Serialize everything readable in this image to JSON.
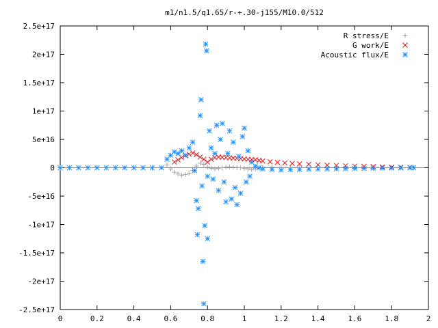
{
  "chart_data": {
    "type": "scatter",
    "title": "m1/n1.5/q1.65/r-+.30-j155/M10.0/512",
    "xlabel": "",
    "ylabel": "",
    "xlim": [
      0,
      2
    ],
    "ylim": [
      -2.5e+17,
      2.5e+17
    ],
    "x_ticks": [
      0,
      0.2,
      0.4,
      0.6,
      0.8,
      1,
      1.2,
      1.4,
      1.6,
      1.8,
      2
    ],
    "x_tick_labels": [
      "0",
      "0.2",
      "0.4",
      "0.6",
      "0.8",
      "1",
      "1.2",
      "1.4",
      "1.6",
      "1.8",
      "2"
    ],
    "y_ticks": [
      -2.5e+17,
      -2e+17,
      -1.5e+17,
      -1e+17,
      -5e+16,
      0,
      5e+16,
      1e+17,
      1.5e+17,
      2e+17,
      2.5e+17
    ],
    "y_tick_labels": [
      "-2.5e+17",
      "-2e+17",
      "-1.5e+17",
      "-1e+17",
      "-5e+16",
      "0",
      "5e+16",
      "1e+17",
      "1.5e+17",
      "2e+17",
      "2.5e+17"
    ],
    "grid": false,
    "legend_position": "top-right",
    "series": [
      {
        "name": "R stress/E",
        "marker": "plus",
        "color": "#a0a0a0",
        "points": [
          [
            0.58,
            5000000000000000.0
          ],
          [
            0.6,
            -2000000000000000.0
          ],
          [
            0.62,
            -8000000000000000.0
          ],
          [
            0.64,
            -1.1e+16
          ],
          [
            0.66,
            -1.3e+16
          ],
          [
            0.68,
            -1.2e+16
          ],
          [
            0.7,
            -1e+16
          ],
          [
            0.72,
            -5000000000000000.0
          ],
          [
            0.74,
            3000000000000000.0
          ],
          [
            0.76,
            8000000000000000.0
          ],
          [
            0.78,
            6000000000000000.0
          ],
          [
            0.8,
            1000000000000000.0
          ],
          [
            0.82,
            -1000000000000000.0
          ],
          [
            0.84,
            -2000000000000000.0
          ],
          [
            0.86,
            -1000000000000000.0
          ],
          [
            0.88,
            0.0
          ],
          [
            0.9,
            1000000000000000.0
          ],
          [
            0.92,
            1500000000000000.0
          ],
          [
            0.94,
            1000000000000000.0
          ],
          [
            0.96,
            500000000000000.0
          ],
          [
            0.98,
            0.0
          ],
          [
            1.0,
            -1000000000000000.0
          ],
          [
            1.02,
            -2000000000000000.0
          ],
          [
            1.04,
            -3000000000000000.0
          ],
          [
            1.06,
            -2000000000000000.0
          ],
          [
            1.08,
            -500000000000000.0
          ],
          [
            1.1,
            500000000000000.0
          ],
          [
            1.15,
            1000000000000000.0
          ],
          [
            1.2,
            500000000000000.0
          ],
          [
            1.25,
            0.0
          ],
          [
            1.3,
            0.0
          ],
          [
            1.4,
            0.0
          ],
          [
            1.5,
            0.0
          ],
          [
            1.6,
            0.0
          ],
          [
            1.7,
            0.0
          ],
          [
            1.8,
            0.0
          ],
          [
            1.9,
            0.0
          ]
        ]
      },
      {
        "name": "G work/E",
        "marker": "cross",
        "color": "#e01010",
        "points": [
          [
            0.62,
            1e+16
          ],
          [
            0.64,
            1.4e+16
          ],
          [
            0.66,
            1.8e+16
          ],
          [
            0.68,
            2.1e+16
          ],
          [
            0.7,
            2.4e+16
          ],
          [
            0.72,
            2.6e+16
          ],
          [
            0.74,
            2.3e+16
          ],
          [
            0.76,
            1.9e+16
          ],
          [
            0.78,
            1.5e+16
          ],
          [
            0.8,
            1e+16
          ],
          [
            0.82,
            1.5e+16
          ],
          [
            0.84,
            1.8e+16
          ],
          [
            0.86,
            1.9e+16
          ],
          [
            0.88,
            1.85e+16
          ],
          [
            0.9,
            1.8e+16
          ],
          [
            0.92,
            1.75e+16
          ],
          [
            0.94,
            1.7e+16
          ],
          [
            0.96,
            1.65e+16
          ],
          [
            0.98,
            1.6e+16
          ],
          [
            1.0,
            1.55e+16
          ],
          [
            1.02,
            1.5e+16
          ],
          [
            1.04,
            1.45e+16
          ],
          [
            1.06,
            1.4e+16
          ],
          [
            1.08,
            1.3e+16
          ],
          [
            1.1,
            1.2e+16
          ],
          [
            1.14,
            1.05e+16
          ],
          [
            1.18,
            9500000000000000.0
          ],
          [
            1.22,
            8500000000000000.0
          ],
          [
            1.26,
            7500000000000000.0
          ],
          [
            1.3,
            6800000000000000.0
          ],
          [
            1.35,
            6000000000000000.0
          ],
          [
            1.4,
            5200000000000000.0
          ],
          [
            1.45,
            4500000000000000.0
          ],
          [
            1.5,
            4000000000000000.0
          ],
          [
            1.55,
            3400000000000000.0
          ],
          [
            1.6,
            2800000000000000.0
          ],
          [
            1.65,
            2400000000000000.0
          ],
          [
            1.7,
            2000000000000000.0
          ],
          [
            1.75,
            1500000000000000.0
          ],
          [
            1.8,
            1100000000000000.0
          ],
          [
            1.85,
            800000000000000.0
          ],
          [
            1.9,
            500000000000000.0
          ]
        ]
      },
      {
        "name": "Acoustic flux/E",
        "marker": "star",
        "color": "#1e90ff",
        "points": [
          [
            0,
            0
          ],
          [
            0.05,
            0
          ],
          [
            0.1,
            0
          ],
          [
            0.15,
            0
          ],
          [
            0.2,
            0
          ],
          [
            0.25,
            0
          ],
          [
            0.3,
            0
          ],
          [
            0.35,
            0
          ],
          [
            0.4,
            0
          ],
          [
            0.45,
            0
          ],
          [
            0.5,
            0
          ],
          [
            0.55,
            0
          ],
          [
            0.58,
            1.5e+16
          ],
          [
            0.6,
            2.2e+16
          ],
          [
            0.62,
            2.8e+16
          ],
          [
            0.64,
            2.5e+16
          ],
          [
            0.66,
            3e+16
          ],
          [
            0.68,
            2.2e+16
          ],
          [
            0.7,
            3.5e+16
          ],
          [
            0.72,
            4.5e+16
          ],
          [
            0.73,
            -5000000000000000.0
          ],
          [
            0.74,
            -5.8e+16
          ],
          [
            0.745,
            -1.18e+17
          ],
          [
            0.75,
            -7.2e+16
          ],
          [
            0.76,
            9.2e+16
          ],
          [
            0.765,
            1.2e+17
          ],
          [
            0.77,
            -3.2e+16
          ],
          [
            0.775,
            -1.65e+17
          ],
          [
            0.78,
            -2.4e+17
          ],
          [
            0.785,
            -1.02e+17
          ],
          [
            0.79,
            2.18e+17
          ],
          [
            0.795,
            2.06e+17
          ],
          [
            0.8,
            -1.25e+17
          ],
          [
            0.8,
            -1.5e+16
          ],
          [
            0.81,
            6.5e+16
          ],
          [
            0.82,
            3.5e+16
          ],
          [
            0.83,
            -2e+16
          ],
          [
            0.84,
            2.5e+16
          ],
          [
            0.85,
            7.5e+16
          ],
          [
            0.86,
            -4e+16
          ],
          [
            0.87,
            5e+16
          ],
          [
            0.88,
            7.8e+16
          ],
          [
            0.89,
            -2.5e+16
          ],
          [
            0.9,
            -6e+16
          ],
          [
            0.91,
            2.5e+16
          ],
          [
            0.92,
            6.5e+16
          ],
          [
            0.93,
            -5.5e+16
          ],
          [
            0.94,
            4.5e+16
          ],
          [
            0.95,
            -3.5e+16
          ],
          [
            0.96,
            -6.5e+16
          ],
          [
            0.97,
            2e+16
          ],
          [
            0.98,
            -4.5e+16
          ],
          [
            0.99,
            5.5e+16
          ],
          [
            1.0,
            7e+16
          ],
          [
            1.01,
            -2.5e+16
          ],
          [
            1.02,
            3e+16
          ],
          [
            1.03,
            -1.5e+16
          ],
          [
            1.04,
            1e+16
          ],
          [
            1.06,
            3000000000000000.0
          ],
          [
            1.08,
            0.0
          ],
          [
            1.1,
            -2000000000000000.0
          ],
          [
            1.15,
            -3000000000000000.0
          ],
          [
            1.2,
            -4000000000000000.0
          ],
          [
            1.25,
            -3500000000000000.0
          ],
          [
            1.3,
            -3000000000000000.0
          ],
          [
            1.35,
            -2500000000000000.0
          ],
          [
            1.4,
            -2200000000000000.0
          ],
          [
            1.45,
            -2000000000000000.0
          ],
          [
            1.5,
            -1800000000000000.0
          ],
          [
            1.55,
            -1500000000000000.0
          ],
          [
            1.6,
            -1200000000000000.0
          ],
          [
            1.65,
            -1000000000000000.0
          ],
          [
            1.7,
            -800000000000000.0
          ],
          [
            1.75,
            -500000000000000.0
          ],
          [
            1.8,
            -300000000000000.0
          ],
          [
            1.85,
            -100000000000000.0
          ],
          [
            1.9,
            0.0
          ],
          [
            1.92,
            0.0
          ]
        ]
      }
    ]
  }
}
